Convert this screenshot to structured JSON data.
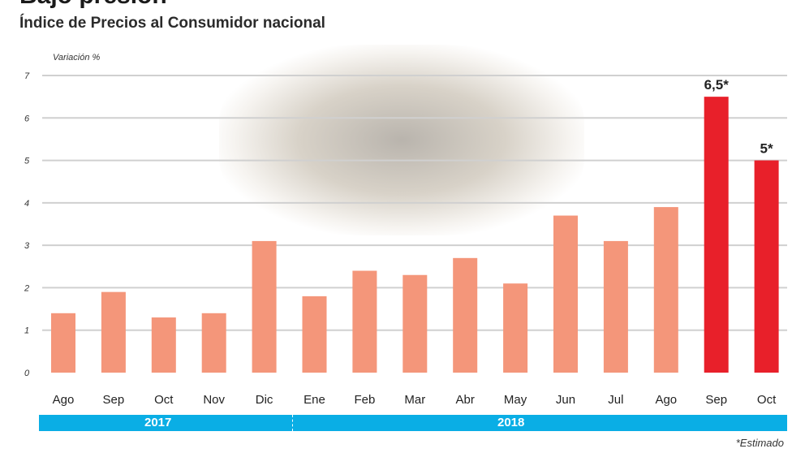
{
  "chart_data": {
    "type": "bar",
    "title": "Bajo presión",
    "subtitle": "Índice de Precios al Consumidor nacional",
    "ylabel": "Variación %",
    "ylim": [
      0,
      7
    ],
    "yticks": [
      0,
      1,
      2,
      3,
      4,
      5,
      6,
      7
    ],
    "grid": true,
    "categories": [
      "Ago",
      "Sep",
      "Oct",
      "Nov",
      "Dic",
      "Ene",
      "Feb",
      "Mar",
      "Abr",
      "May",
      "Jun",
      "Jul",
      "Ago",
      "Sep",
      "Oct"
    ],
    "values": [
      1.4,
      1.9,
      1.3,
      1.4,
      3.1,
      1.8,
      2.4,
      2.3,
      2.7,
      2.1,
      3.7,
      3.1,
      3.9,
      6.5,
      5.0
    ],
    "estimated": [
      false,
      false,
      false,
      false,
      false,
      false,
      false,
      false,
      false,
      false,
      false,
      false,
      false,
      true,
      true
    ],
    "data_labels": [
      "",
      "",
      "",
      "",
      "",
      "",
      "",
      "",
      "",
      "",
      "",
      "",
      "",
      "6,5*",
      "5*"
    ],
    "years": [
      {
        "label": "2017",
        "months": 5
      },
      {
        "label": "2018",
        "months": 10
      }
    ],
    "footnote": "*Estimado",
    "colors": {
      "actual": "#f4967a",
      "estimated": "#e8202a",
      "year_band": "#0aaee5",
      "grid": "#d0d0d0"
    }
  }
}
